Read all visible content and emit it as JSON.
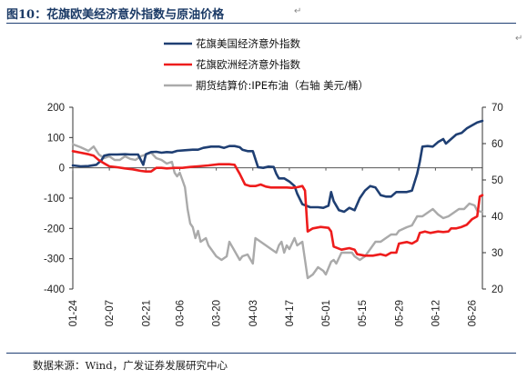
{
  "header": {
    "title": "图10：花旗欧美经济意外指数与原油价格",
    "mark": "↵"
  },
  "footer": {
    "source": "数据来源：Wind，广发证券发展研究中心",
    "mark": "↵"
  },
  "colors": {
    "us": "#1f3f73",
    "eu": "#ee1c1c",
    "oil": "#aaaaaa",
    "rule": "#1f3f73"
  },
  "chart_data": {
    "type": "line",
    "x_tick_labels": [
      "01-24",
      "02-07",
      "02-21",
      "03-06",
      "03-20",
      "04-03",
      "04-17",
      "05-01",
      "05-15",
      "05-29",
      "06-12",
      "06-26"
    ],
    "x_range_days": [
      0,
      157
    ],
    "x_tick_days": [
      0,
      14,
      28,
      41,
      55,
      69,
      83,
      97,
      111,
      125,
      139,
      153
    ],
    "y_left": {
      "range": [
        -400,
        200
      ],
      "ticks": [
        -400,
        -300,
        -200,
        -100,
        0,
        100,
        200
      ]
    },
    "y_right": {
      "range": [
        20,
        70
      ],
      "ticks": [
        20,
        30,
        40,
        50,
        60,
        70
      ]
    },
    "legend": {
      "position": "top-right"
    },
    "series": [
      {
        "name": "花旗美国经济意外指数",
        "axis": "left",
        "color": "#1f3f73",
        "points": [
          [
            0,
            8
          ],
          [
            3,
            5
          ],
          [
            6,
            6
          ],
          [
            9,
            10
          ],
          [
            11,
            25
          ],
          [
            12,
            40
          ],
          [
            14,
            44
          ],
          [
            17,
            44
          ],
          [
            20,
            45
          ],
          [
            22,
            44
          ],
          [
            25,
            44
          ],
          [
            27,
            10
          ],
          [
            28,
            45
          ],
          [
            30,
            52
          ],
          [
            32,
            53
          ],
          [
            34,
            50
          ],
          [
            36,
            52
          ],
          [
            38,
            51
          ],
          [
            40,
            56
          ],
          [
            43,
            58
          ],
          [
            46,
            60
          ],
          [
            48,
            60
          ],
          [
            50,
            66
          ],
          [
            53,
            70
          ],
          [
            56,
            70
          ],
          [
            58,
            66
          ],
          [
            60,
            72
          ],
          [
            62,
            72
          ],
          [
            64,
            68
          ],
          [
            65,
            60
          ],
          [
            67,
            55
          ],
          [
            69,
            55
          ],
          [
            71,
            2
          ],
          [
            73,
            0
          ],
          [
            75,
            4
          ],
          [
            77,
            3
          ],
          [
            78,
            -20
          ],
          [
            79,
            -35
          ],
          [
            81,
            -35
          ],
          [
            83,
            -45
          ],
          [
            85,
            -60
          ],
          [
            86,
            -85
          ],
          [
            88,
            -120
          ],
          [
            91,
            -130
          ],
          [
            94,
            -130
          ],
          [
            96,
            -132
          ],
          [
            98,
            -125
          ],
          [
            99,
            -80
          ],
          [
            100,
            -110
          ],
          [
            102,
            -140
          ],
          [
            104,
            -145
          ],
          [
            106,
            -132
          ],
          [
            108,
            -140
          ],
          [
            110,
            -100
          ],
          [
            112,
            -75
          ],
          [
            114,
            -60
          ],
          [
            116,
            -65
          ],
          [
            118,
            -90
          ],
          [
            120,
            -95
          ],
          [
            122,
            -95
          ],
          [
            124,
            -80
          ],
          [
            126,
            -80
          ],
          [
            128,
            -80
          ],
          [
            130,
            -75
          ],
          [
            132,
            -20
          ],
          [
            133,
            20
          ],
          [
            134,
            70
          ],
          [
            136,
            72
          ],
          [
            138,
            70
          ],
          [
            140,
            85
          ],
          [
            142,
            95
          ],
          [
            143,
            80
          ],
          [
            145,
            95
          ],
          [
            147,
            110
          ],
          [
            149,
            115
          ],
          [
            151,
            130
          ],
          [
            153,
            140
          ],
          [
            155,
            150
          ],
          [
            157,
            155
          ]
        ]
      },
      {
        "name": "花旗欧洲经济意外指数",
        "axis": "left",
        "color": "#ee1c1c",
        "points": [
          [
            0,
            55
          ],
          [
            3,
            50
          ],
          [
            6,
            45
          ],
          [
            8,
            40
          ],
          [
            10,
            25
          ],
          [
            12,
            15
          ],
          [
            14,
            5
          ],
          [
            17,
            2
          ],
          [
            20,
            -2
          ],
          [
            23,
            -5
          ],
          [
            26,
            -10
          ],
          [
            28,
            -12
          ],
          [
            30,
            -12
          ],
          [
            32,
            0
          ],
          [
            34,
            0
          ],
          [
            36,
            -2
          ],
          [
            39,
            0
          ],
          [
            42,
            0
          ],
          [
            45,
            3
          ],
          [
            48,
            5
          ],
          [
            52,
            8
          ],
          [
            56,
            12
          ],
          [
            60,
            12
          ],
          [
            62,
            10
          ],
          [
            64,
            -20
          ],
          [
            66,
            -55
          ],
          [
            68,
            -60
          ],
          [
            70,
            -60
          ],
          [
            72,
            -55
          ],
          [
            74,
            -62
          ],
          [
            76,
            -65
          ],
          [
            78,
            -65
          ],
          [
            80,
            -65
          ],
          [
            82,
            -65
          ],
          [
            84,
            -66
          ],
          [
            86,
            -64
          ],
          [
            88,
            -60
          ],
          [
            89,
            -75
          ],
          [
            90,
            -210
          ],
          [
            92,
            -200
          ],
          [
            95,
            -195
          ],
          [
            98,
            -198
          ],
          [
            99,
            -210
          ],
          [
            100,
            -260
          ],
          [
            103,
            -270
          ],
          [
            106,
            -265
          ],
          [
            108,
            -270
          ],
          [
            109,
            -285
          ],
          [
            112,
            -290
          ],
          [
            115,
            -290
          ],
          [
            118,
            -285
          ],
          [
            120,
            -290
          ],
          [
            122,
            -280
          ],
          [
            124,
            -280
          ],
          [
            125,
            -250
          ],
          [
            128,
            -245
          ],
          [
            130,
            -250
          ],
          [
            132,
            -240
          ],
          [
            133,
            -215
          ],
          [
            135,
            -210
          ],
          [
            137,
            -215
          ],
          [
            140,
            -210
          ],
          [
            142,
            -212
          ],
          [
            144,
            -210
          ],
          [
            145,
            -200
          ],
          [
            147,
            -200
          ],
          [
            149,
            -195
          ],
          [
            151,
            -188
          ],
          [
            153,
            -170
          ],
          [
            155,
            -160
          ],
          [
            156,
            -95
          ],
          [
            157,
            -90
          ]
        ]
      },
      {
        "name": "期货结算价:IPE布油（右轴 美元/桶）",
        "axis": "right",
        "color": "#aaaaaa",
        "points": [
          [
            0,
            59.8
          ],
          [
            3,
            59
          ],
          [
            6,
            58
          ],
          [
            8,
            59.2
          ],
          [
            10,
            57
          ],
          [
            12,
            56
          ],
          [
            14,
            56.5
          ],
          [
            16,
            55.5
          ],
          [
            18,
            55.5
          ],
          [
            20,
            56.5
          ],
          [
            22,
            55.8
          ],
          [
            24,
            55.5
          ],
          [
            26,
            56.5
          ],
          [
            28,
            57
          ],
          [
            30,
            57.5
          ],
          [
            32,
            56
          ],
          [
            34,
            55.5
          ],
          [
            36,
            54.5
          ],
          [
            38,
            55
          ],
          [
            39,
            52
          ],
          [
            40,
            51
          ],
          [
            41,
            52
          ],
          [
            42,
            50
          ],
          [
            43,
            48
          ],
          [
            44,
            42
          ],
          [
            45,
            38
          ],
          [
            46,
            37
          ],
          [
            47,
            34
          ],
          [
            48,
            36
          ],
          [
            49,
            33
          ],
          [
            51,
            34
          ],
          [
            52,
            32
          ],
          [
            53,
            31
          ],
          [
            55,
            29
          ],
          [
            57,
            28
          ],
          [
            59,
            29
          ],
          [
            60,
            33
          ],
          [
            62,
            30.5
          ],
          [
            64,
            28
          ],
          [
            65,
            29
          ],
          [
            67,
            29.5
          ],
          [
            69,
            27
          ],
          [
            70,
            34
          ],
          [
            72,
            33
          ],
          [
            74,
            32
          ],
          [
            76,
            31
          ],
          [
            78,
            30
          ],
          [
            79,
            32
          ],
          [
            80,
            33
          ],
          [
            81,
            30
          ],
          [
            82,
            32
          ],
          [
            83,
            31
          ],
          [
            85,
            34
          ],
          [
            86,
            32
          ],
          [
            88,
            33
          ],
          [
            89,
            28
          ],
          [
            90,
            23
          ],
          [
            92,
            24
          ],
          [
            94,
            26
          ],
          [
            96,
            25
          ],
          [
            97,
            24
          ],
          [
            99,
            27.5
          ],
          [
            100,
            28
          ],
          [
            101,
            27
          ],
          [
            103,
            30
          ],
          [
            105,
            30
          ],
          [
            107,
            30
          ],
          [
            108,
            29
          ],
          [
            110,
            28
          ],
          [
            112,
            29
          ],
          [
            114,
            31
          ],
          [
            116,
            33
          ],
          [
            118,
            33
          ],
          [
            120,
            34
          ],
          [
            122,
            35
          ],
          [
            124,
            35
          ],
          [
            125,
            36
          ],
          [
            128,
            37
          ],
          [
            130,
            37.5
          ],
          [
            132,
            40
          ],
          [
            134,
            40
          ],
          [
            136,
            41
          ],
          [
            138,
            42
          ],
          [
            140,
            40.5
          ],
          [
            142,
            39.5
          ],
          [
            144,
            40
          ],
          [
            146,
            41
          ],
          [
            148,
            42
          ],
          [
            150,
            42
          ],
          [
            152,
            43.5
          ],
          [
            154,
            43
          ],
          [
            155,
            41.5
          ],
          [
            157,
            41.2
          ]
        ]
      }
    ]
  }
}
